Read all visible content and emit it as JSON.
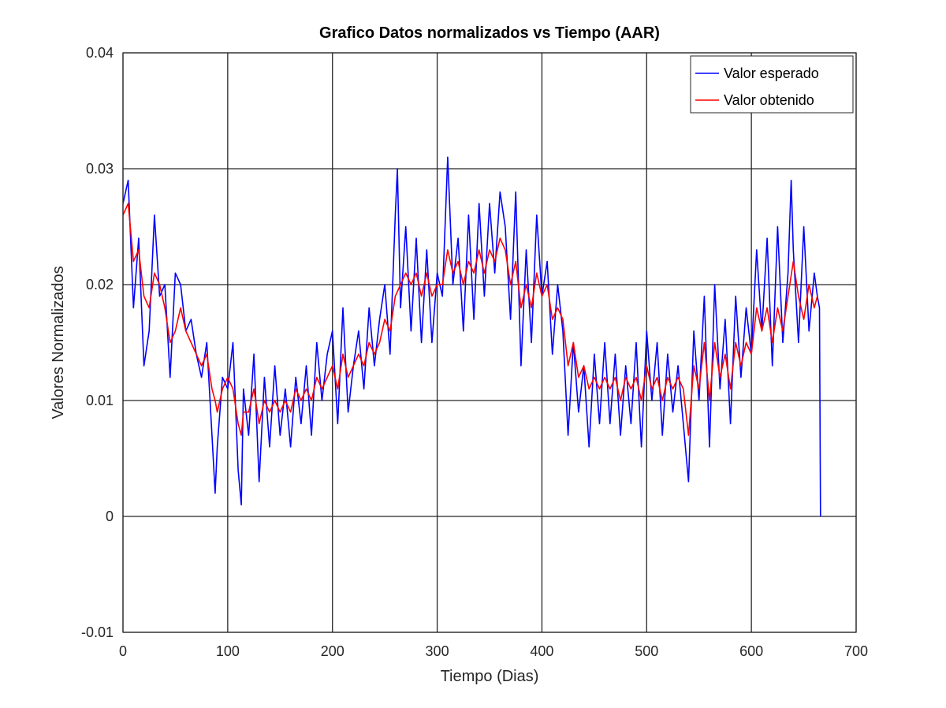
{
  "chart_data": {
    "type": "line",
    "title": "Grafico Datos normalizados vs Tiempo (AAR)",
    "xlabel": "Tiempo (Dias)",
    "ylabel": "Valores Normalizados",
    "xlim": [
      0,
      700
    ],
    "ylim": [
      -0.01,
      0.04
    ],
    "xticks": [
      0,
      100,
      200,
      300,
      400,
      500,
      600,
      700
    ],
    "yticks": [
      -0.01,
      0,
      0.01,
      0.02,
      0.03,
      0.04
    ],
    "xtick_labels": [
      "0",
      "100",
      "200",
      "300",
      "400",
      "500",
      "600",
      "700"
    ],
    "ytick_labels": [
      "-0.01",
      "0",
      "0.01",
      "0.02",
      "0.03",
      "0.04"
    ],
    "grid": true,
    "legend_position": "top-right",
    "series": [
      {
        "name": "Valor esperado",
        "color": "#0000ff",
        "x": [
          0,
          5,
          10,
          15,
          20,
          25,
          30,
          35,
          40,
          45,
          50,
          55,
          60,
          65,
          70,
          75,
          80,
          85,
          88,
          90,
          95,
          100,
          105,
          110,
          113,
          115,
          120,
          125,
          130,
          135,
          140,
          145,
          150,
          155,
          160,
          165,
          170,
          175,
          180,
          185,
          190,
          195,
          200,
          205,
          210,
          215,
          220,
          225,
          230,
          235,
          240,
          245,
          250,
          255,
          260,
          262,
          265,
          270,
          275,
          280,
          285,
          290,
          295,
          300,
          305,
          310,
          315,
          320,
          325,
          330,
          335,
          340,
          345,
          350,
          355,
          360,
          365,
          370,
          375,
          380,
          385,
          390,
          395,
          400,
          405,
          410,
          415,
          420,
          425,
          430,
          435,
          440,
          445,
          450,
          455,
          460,
          465,
          470,
          475,
          480,
          485,
          490,
          495,
          500,
          505,
          510,
          515,
          520,
          525,
          530,
          535,
          540,
          545,
          550,
          555,
          560,
          565,
          570,
          575,
          580,
          585,
          590,
          595,
          600,
          605,
          610,
          615,
          620,
          625,
          630,
          635,
          638,
          640,
          645,
          650,
          655,
          660,
          663,
          665,
          666
        ],
        "values": [
          0.027,
          0.029,
          0.018,
          0.024,
          0.013,
          0.016,
          0.026,
          0.019,
          0.02,
          0.012,
          0.021,
          0.02,
          0.016,
          0.017,
          0.014,
          0.012,
          0.015,
          0.007,
          0.002,
          0.006,
          0.012,
          0.011,
          0.015,
          0.004,
          0.001,
          0.011,
          0.007,
          0.014,
          0.003,
          0.012,
          0.006,
          0.013,
          0.007,
          0.011,
          0.006,
          0.012,
          0.008,
          0.013,
          0.007,
          0.015,
          0.01,
          0.014,
          0.016,
          0.008,
          0.018,
          0.009,
          0.013,
          0.016,
          0.011,
          0.018,
          0.013,
          0.017,
          0.02,
          0.014,
          0.026,
          0.03,
          0.018,
          0.025,
          0.016,
          0.024,
          0.015,
          0.023,
          0.015,
          0.021,
          0.019,
          0.031,
          0.02,
          0.024,
          0.016,
          0.026,
          0.017,
          0.027,
          0.019,
          0.027,
          0.021,
          0.028,
          0.025,
          0.017,
          0.028,
          0.013,
          0.023,
          0.015,
          0.026,
          0.019,
          0.022,
          0.014,
          0.02,
          0.016,
          0.007,
          0.015,
          0.009,
          0.013,
          0.006,
          0.014,
          0.008,
          0.015,
          0.008,
          0.014,
          0.007,
          0.013,
          0.008,
          0.015,
          0.006,
          0.016,
          0.01,
          0.015,
          0.007,
          0.014,
          0.009,
          0.013,
          0.008,
          0.003,
          0.016,
          0.01,
          0.019,
          0.006,
          0.02,
          0.011,
          0.017,
          0.008,
          0.019,
          0.012,
          0.018,
          0.014,
          0.023,
          0.016,
          0.024,
          0.013,
          0.025,
          0.015,
          0.021,
          0.029,
          0.023,
          0.015,
          0.025,
          0.016,
          0.021,
          0.019,
          0.018,
          0.0
        ]
      },
      {
        "name": "Valor obtenido",
        "color": "#ff0000",
        "x": [
          0,
          5,
          10,
          15,
          20,
          25,
          30,
          35,
          40,
          45,
          50,
          55,
          60,
          65,
          70,
          75,
          80,
          85,
          88,
          90,
          95,
          100,
          105,
          110,
          113,
          115,
          120,
          125,
          130,
          135,
          140,
          145,
          150,
          155,
          160,
          165,
          170,
          175,
          180,
          185,
          190,
          195,
          200,
          205,
          210,
          215,
          220,
          225,
          230,
          235,
          240,
          245,
          250,
          255,
          260,
          265,
          270,
          275,
          280,
          285,
          290,
          295,
          300,
          305,
          310,
          315,
          320,
          325,
          330,
          335,
          340,
          345,
          350,
          355,
          360,
          365,
          370,
          375,
          380,
          385,
          390,
          395,
          400,
          405,
          410,
          415,
          420,
          425,
          430,
          435,
          440,
          445,
          450,
          455,
          460,
          465,
          470,
          475,
          480,
          485,
          490,
          495,
          500,
          505,
          510,
          515,
          520,
          525,
          530,
          535,
          540,
          545,
          550,
          555,
          560,
          565,
          570,
          575,
          580,
          585,
          590,
          595,
          600,
          605,
          610,
          615,
          620,
          625,
          630,
          635,
          640,
          645,
          650,
          655,
          660,
          663
        ],
        "values": [
          0.026,
          0.027,
          0.022,
          0.023,
          0.019,
          0.018,
          0.021,
          0.02,
          0.018,
          0.015,
          0.016,
          0.018,
          0.016,
          0.015,
          0.014,
          0.013,
          0.014,
          0.011,
          0.01,
          0.009,
          0.011,
          0.012,
          0.011,
          0.008,
          0.007,
          0.009,
          0.009,
          0.011,
          0.008,
          0.01,
          0.009,
          0.01,
          0.009,
          0.01,
          0.009,
          0.011,
          0.01,
          0.011,
          0.01,
          0.012,
          0.011,
          0.012,
          0.013,
          0.011,
          0.014,
          0.012,
          0.013,
          0.014,
          0.013,
          0.015,
          0.014,
          0.015,
          0.017,
          0.016,
          0.019,
          0.02,
          0.021,
          0.02,
          0.021,
          0.019,
          0.021,
          0.019,
          0.02,
          0.02,
          0.023,
          0.021,
          0.022,
          0.02,
          0.022,
          0.021,
          0.023,
          0.021,
          0.023,
          0.022,
          0.024,
          0.023,
          0.02,
          0.022,
          0.018,
          0.02,
          0.018,
          0.021,
          0.019,
          0.02,
          0.017,
          0.018,
          0.017,
          0.013,
          0.015,
          0.012,
          0.013,
          0.011,
          0.012,
          0.011,
          0.012,
          0.011,
          0.012,
          0.01,
          0.012,
          0.011,
          0.012,
          0.01,
          0.013,
          0.011,
          0.012,
          0.01,
          0.012,
          0.011,
          0.012,
          0.011,
          0.007,
          0.013,
          0.011,
          0.015,
          0.01,
          0.015,
          0.012,
          0.014,
          0.011,
          0.015,
          0.013,
          0.015,
          0.014,
          0.018,
          0.016,
          0.018,
          0.015,
          0.018,
          0.016,
          0.019,
          0.022,
          0.019,
          0.017,
          0.02,
          0.018,
          0.019
        ]
      }
    ]
  }
}
